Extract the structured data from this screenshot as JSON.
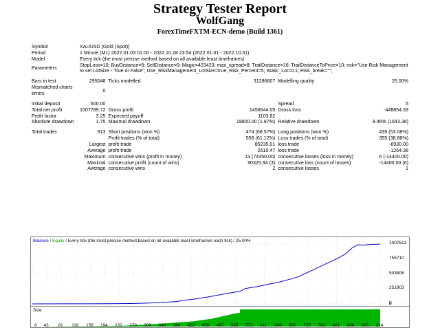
{
  "header": {
    "title": "Strategy Tester Report",
    "ea_name": "WolfGang",
    "server_build": "ForexTimeFXTM-ECN-demo (Build 1361)"
  },
  "report": {
    "symbol_label": "Symbol",
    "symbol_value": "XAUUSD (Gold (Spot))",
    "period_label": "Period",
    "period_value": "1 Minute (M1) 2022.01.03 01:00 - 2022.10.28 23:54 (2022.01.01 - 2022.10.31)",
    "model_label": "Model",
    "model_value": "Every tick (the most precise method based on all available least timeframes)",
    "parameters_label": "Parameters",
    "parameters_value": "StopLoss=10; BuyDistance=9; SellDistance=9; Magic=423423; max_spread=8; TrailDistance=16; TrailDistanceToPrice=10; risk=\"Use Risk Management to set LotSize - True or False\"; Use_RiskManagement_LotSize=true; Risk_Percent=5; Static_Lot=0.1; Risk_break=\"\";",
    "bars_label": "Bars in test",
    "bars_value": "295048",
    "ticks_label": "Ticks modelled",
    "ticks_value": "31286607",
    "quality_label": "Modelling quality",
    "quality_value": "25.00%",
    "mismatch_label": "Mismatched charts errors",
    "mismatch_value": "0",
    "deposit_label": "Initial deposit",
    "deposit_value": "500.00",
    "spread_label": "Spread",
    "spread_value": "5",
    "net_label": "Total net profit",
    "net_value": "1007789.72",
    "gross_profit_label": "Gross profit",
    "gross_profit_value": "1456644.05",
    "gross_loss_label": "Gross loss",
    "gross_loss_value": "-448854.33",
    "pf_label": "Profit factor",
    "pf_value": "3.25",
    "payoff_label": "Expected payoff",
    "payoff_value": "1103.82",
    "abs_dd_label": "Absolute drawdown",
    "abs_dd_value": "1.75",
    "max_dd_label": "Maximal drawdown",
    "max_dd_value": "18800.00 (1.87%)",
    "rel_dd_label": "Relative drawdown",
    "rel_dd_value": "9.46% (1643.36)",
    "trades_label": "Total trades",
    "trades_value": "913",
    "short_label": "Short positions (won %)",
    "short_value": "474 (68.57%)",
    "long_label": "Long positions (won %)",
    "long_value": "439 (53.08%)",
    "profit_trades_label": "Profit trades (% of total)",
    "profit_trades_value": "558 (61.12%)",
    "loss_trades_label": "Loss trades (% of total)",
    "loss_trades_value": "355 (38.88%)",
    "largest_label": "Largest",
    "largest_profit_label": "profit trade",
    "largest_profit_value": "85235.01",
    "largest_loss_label": "loss trade",
    "largest_loss_value": "-6930.00",
    "average_label": "Average",
    "average_profit_label": "profit trade",
    "average_profit_value": "2610.47",
    "average_loss_label": "loss trade",
    "average_loss_value": "-1264.38",
    "maximum_label": "Maximum",
    "max_cons_wins_label": "consecutive wins (profit in money)",
    "max_cons_wins_value": "13 (74350.00)",
    "max_cons_losses_label": "consecutive losses (loss in money)",
    "max_cons_losses_value": "6 (-14400.00)",
    "maximal_label": "Maximal",
    "maximal_cons_profit_label": "consecutive profit (count of wins)",
    "maximal_cons_profit_value": "90325.94 (3)",
    "maximal_cons_loss_label": "consecutive loss (count of losses)",
    "maximal_cons_loss_value": "-14400.00 (6)",
    "avg_cons_label": "Average",
    "avg_cons_wins_label": "consecutive wins",
    "avg_cons_wins_value": "2",
    "avg_cons_losses_label": "consecutive losses",
    "avg_cons_losses_value": "1"
  },
  "graph": {
    "caption_balance": "Balance",
    "caption_sep1": " / ",
    "caption_equity": "Equity",
    "caption_rest": " / Every tick (the most precise method based on all available least timeframes each tick) / 25.00%",
    "size_label": "Size",
    "colors": {
      "balance": "#0000c8",
      "size": "#00b400"
    }
  },
  "chart_data": {
    "type": "line",
    "y_ticks": [
      "1007613",
      "755710",
      "503806",
      "251903",
      "0"
    ],
    "y_tick_values": [
      1007613,
      755710,
      503806,
      251903,
      0
    ],
    "x_ticks": [
      "0",
      "43",
      "81",
      "118",
      "156",
      "194",
      "232",
      "270",
      "308",
      "346",
      "384",
      "422",
      "459",
      "497",
      "535",
      "573",
      "611",
      "649",
      "687",
      "725",
      "763",
      "801",
      "838",
      "876",
      "914"
    ],
    "ylim": [
      0,
      1007613
    ],
    "xlim": [
      0,
      914
    ],
    "series": [
      {
        "name": "Balance",
        "x": [
          0,
          100,
          200,
          260,
          300,
          340,
          380,
          400,
          430,
          460,
          490,
          520,
          545,
          560,
          590,
          620,
          650,
          680,
          700,
          720,
          740,
          760,
          780,
          800,
          820,
          830,
          840,
          855,
          870,
          885,
          900,
          914
        ],
        "values": [
          500,
          1000,
          2000,
          6000,
          13000,
          22000,
          40000,
          60000,
          85000,
          115000,
          150000,
          185000,
          210000,
          260000,
          290000,
          330000,
          370000,
          420000,
          460000,
          520000,
          580000,
          640000,
          700000,
          760000,
          830000,
          880000,
          940000,
          995000,
          990000,
          1000000,
          1003000,
          1007613
        ]
      }
    ],
    "size_series": {
      "x": [
        0,
        240,
        300,
        360,
        420,
        470,
        500,
        530,
        545,
        546,
        914
      ],
      "values": [
        0,
        0.05,
        0.12,
        0.2,
        0.3,
        0.45,
        0.6,
        0.75,
        0.8,
        1.0,
        1.0
      ]
    }
  }
}
